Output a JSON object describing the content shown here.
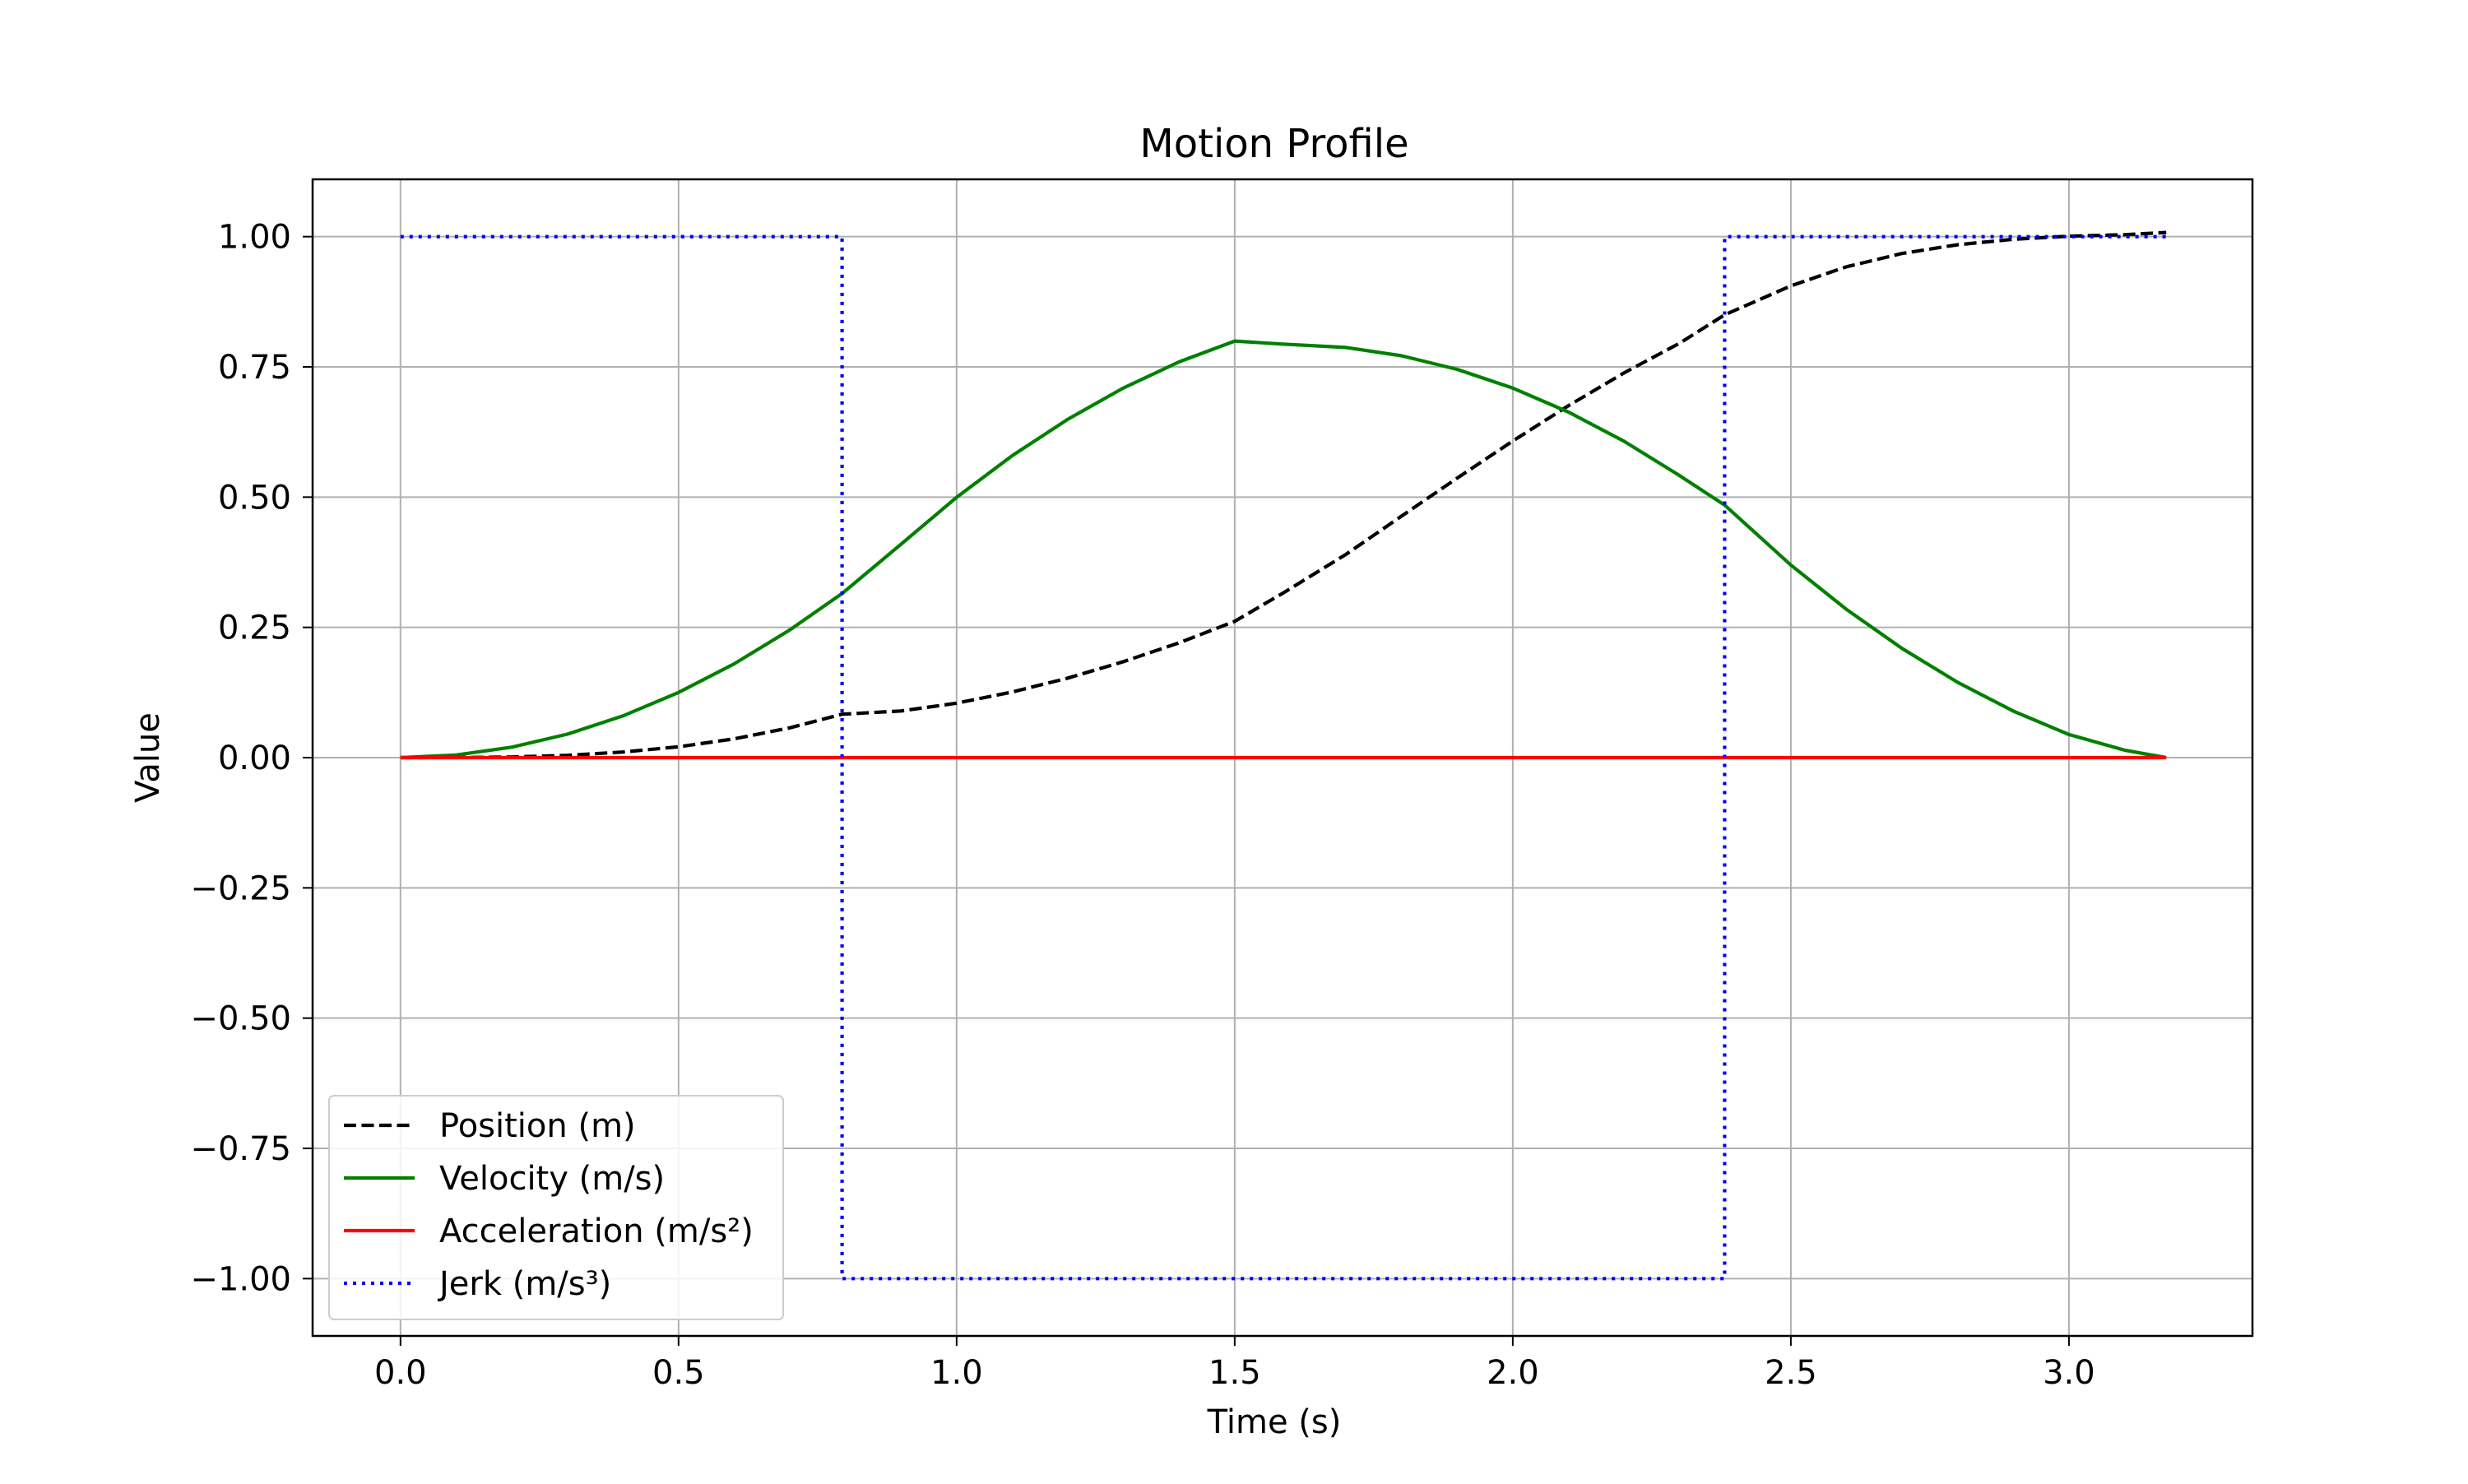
{
  "chart_data": {
    "type": "line",
    "title": "Motion Profile",
    "xlabel": "Time (s)",
    "ylabel": "Value",
    "xlim": [
      -0.158,
      3.33
    ],
    "ylim": [
      -1.11,
      1.11
    ],
    "x_ticks": [
      0.0,
      0.5,
      1.0,
      1.5,
      2.0,
      2.5,
      3.0
    ],
    "x_tick_labels": [
      "0.0",
      "0.5",
      "1.0",
      "1.5",
      "2.0",
      "2.5",
      "3.0"
    ],
    "y_ticks": [
      1.0,
      0.75,
      0.5,
      0.25,
      0.0,
      -0.25,
      -0.5,
      -0.75,
      -1.0
    ],
    "y_tick_labels": [
      "1.00",
      "0.75",
      "0.50",
      "0.25",
      "0.00",
      "−0.25",
      "−0.50",
      "−0.75",
      "−1.00"
    ],
    "grid": true,
    "legend_position": "lower-left",
    "series": [
      {
        "name": "Position (m)",
        "color": "#000000",
        "style": "dashed",
        "x": [
          0.0,
          0.1,
          0.2,
          0.3,
          0.4,
          0.5,
          0.6,
          0.7,
          0.794,
          0.9,
          1.0,
          1.1,
          1.2,
          1.3,
          1.4,
          1.5,
          1.587,
          1.7,
          1.8,
          1.9,
          2.0,
          2.1,
          2.2,
          2.3,
          2.381,
          2.5,
          2.6,
          2.7,
          2.8,
          2.9,
          3.0,
          3.1,
          3.175
        ],
        "y": [
          0.0,
          0.0002,
          0.0013,
          0.0045,
          0.0107,
          0.0208,
          0.036,
          0.0572,
          0.0833,
          0.0895,
          0.1045,
          0.126,
          0.1527,
          0.1842,
          0.2205,
          0.2616,
          0.316,
          0.3901,
          0.4636,
          0.5366,
          0.6077,
          0.6754,
          0.7384,
          0.7955,
          0.85,
          0.9055,
          0.9421,
          0.9677,
          0.9845,
          0.9949,
          1.0009,
          1.0037,
          1.008
        ]
      },
      {
        "name": "Velocity (m/s)",
        "color": "#008000",
        "style": "solid",
        "x": [
          0.0,
          0.1,
          0.2,
          0.3,
          0.4,
          0.5,
          0.6,
          0.7,
          0.794,
          0.9,
          1.0,
          1.1,
          1.2,
          1.3,
          1.4,
          1.5,
          1.587,
          1.7,
          1.8,
          1.9,
          2.0,
          2.1,
          2.2,
          2.3,
          2.381,
          2.5,
          2.6,
          2.7,
          2.8,
          2.9,
          3.0,
          3.1,
          3.175
        ],
        "y": [
          0.0,
          0.005,
          0.02,
          0.045,
          0.08,
          0.125,
          0.18,
          0.245,
          0.315,
          0.4096,
          0.4996,
          0.5796,
          0.6496,
          0.7096,
          0.7596,
          0.7996,
          0.7937,
          0.7873,
          0.7713,
          0.7453,
          0.7093,
          0.6633,
          0.6073,
          0.5413,
          0.4847,
          0.3697,
          0.2846,
          0.2095,
          0.1445,
          0.0894,
          0.0444,
          0.0144,
          0.0
        ]
      },
      {
        "name": "Acceleration (m/s²)",
        "color": "#ff0000",
        "style": "solid",
        "x": [
          0.0,
          3.175
        ],
        "y": [
          0.0,
          0.0
        ]
      },
      {
        "name": "Jerk (m/s³)",
        "color": "#0000ff",
        "style": "dotted",
        "x": [
          0.0,
          0.794,
          0.794,
          2.381,
          2.381,
          3.175
        ],
        "y": [
          1.0,
          1.0,
          -1.0,
          -1.0,
          1.0,
          1.0
        ]
      }
    ]
  }
}
